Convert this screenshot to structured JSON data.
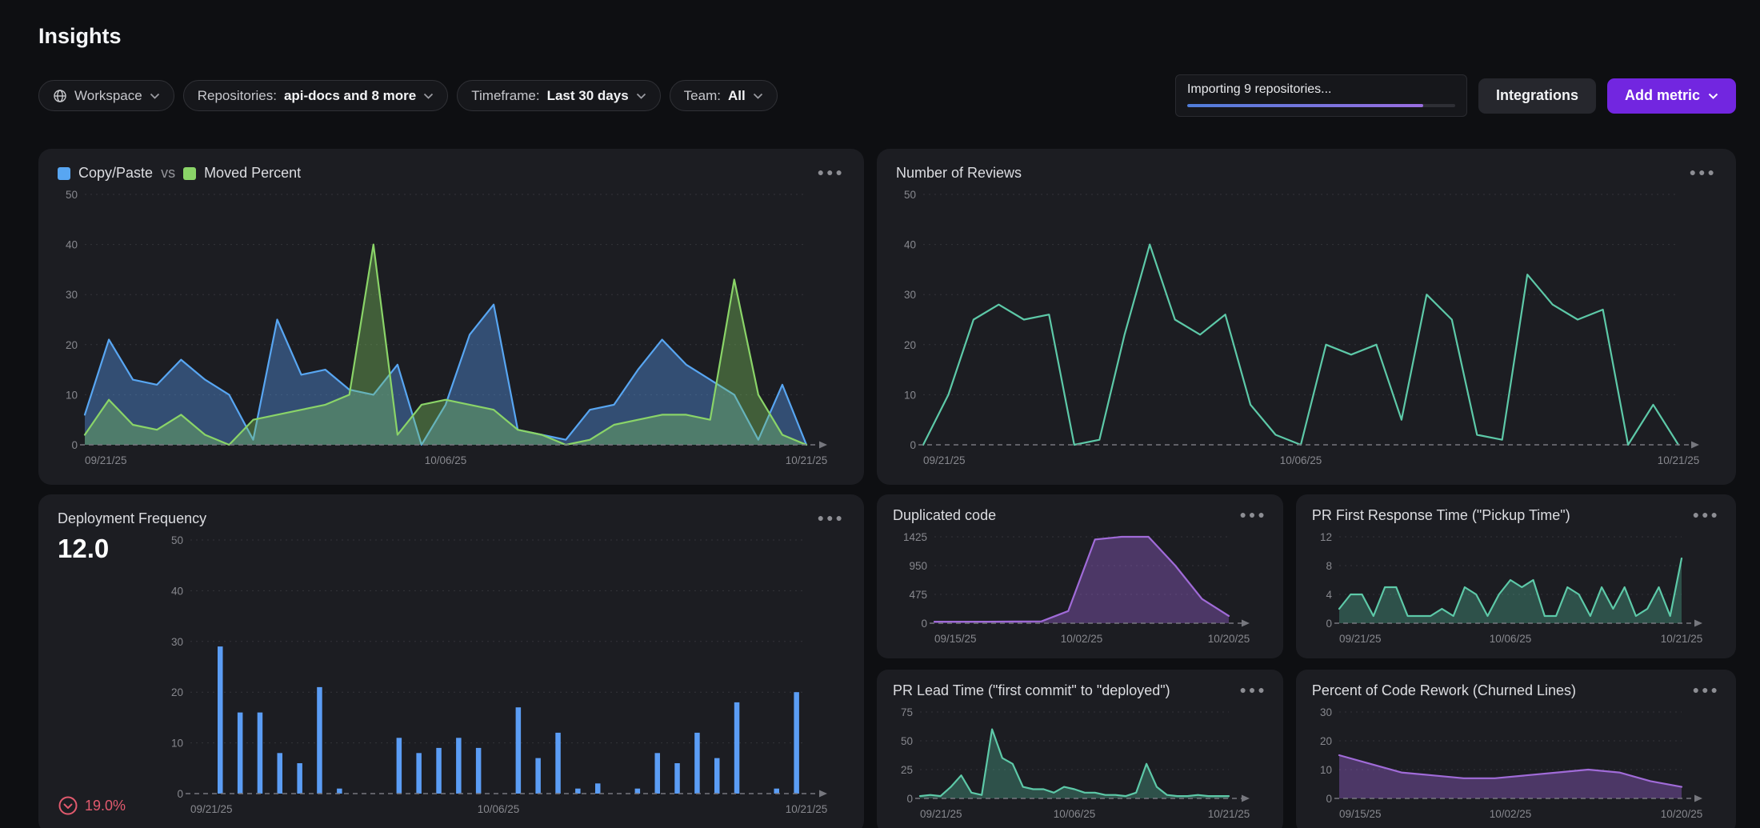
{
  "page": {
    "title": "Insights"
  },
  "toolbar": {
    "workspace": {
      "label": "Workspace"
    },
    "repositories": {
      "prefix": "Repositories:",
      "value": "api-docs and 8 more"
    },
    "timeframe": {
      "prefix": "Timeframe:",
      "value": "Last 30 days"
    },
    "team": {
      "prefix": "Team:",
      "value": "All"
    },
    "import": {
      "text": "Importing 9 repositories...",
      "progress_percent": 88
    },
    "integrations_label": "Integrations",
    "add_metric_label": "Add metric"
  },
  "colors": {
    "accent_purple": "#7226e0",
    "blue_series": "#58a6f2",
    "green_series": "#8ad468",
    "teal_series": "#5dc9a8",
    "purple_series": "#a06bd8",
    "bar_blue": "#5b9df5",
    "delta_red": "#e25a6e"
  },
  "chart_data": [
    {
      "id": "copy-paste-vs-moved",
      "type": "area",
      "legend": [
        {
          "label": "Copy/Paste",
          "color": "#58a6f2"
        },
        {
          "label": "Moved Percent",
          "color": "#8ad468"
        }
      ],
      "legend_separator": "vs",
      "ylim": [
        0,
        50
      ],
      "yticks": [
        0,
        10,
        20,
        30,
        40,
        50
      ],
      "x_labels": [
        {
          "text": "09/21/25",
          "f": 0
        },
        {
          "text": "10/06/25",
          "f": 0.5
        },
        {
          "text": "10/21/25",
          "f": 1
        }
      ],
      "series": [
        {
          "name": "Copy/Paste",
          "color": "#58a6f2",
          "fill": "rgba(80,140,215,0.45)",
          "values": [
            6,
            21,
            13,
            12,
            17,
            13,
            10,
            1,
            25,
            14,
            15,
            11,
            10,
            16,
            0,
            8,
            22,
            28,
            3,
            2,
            1,
            7,
            8,
            15,
            21,
            16,
            13,
            10,
            1,
            12,
            0
          ]
        },
        {
          "name": "Moved Percent",
          "color": "#8ad468",
          "fill": "rgba(125,200,95,0.38)",
          "values": [
            2,
            9,
            4,
            3,
            6,
            2,
            0,
            5,
            6,
            7,
            8,
            10,
            40,
            2,
            8,
            9,
            8,
            7,
            3,
            2,
            0,
            1,
            4,
            5,
            6,
            6,
            5,
            33,
            10,
            2,
            0
          ]
        }
      ]
    },
    {
      "id": "number-of-reviews",
      "title": "Number of Reviews",
      "type": "line",
      "ylim": [
        0,
        50
      ],
      "yticks": [
        0,
        10,
        20,
        30,
        40,
        50
      ],
      "x_labels": [
        {
          "text": "09/21/25",
          "f": 0
        },
        {
          "text": "10/06/25",
          "f": 0.5
        },
        {
          "text": "10/21/25",
          "f": 1
        }
      ],
      "series": [
        {
          "name": "Reviews",
          "color": "#5dc9a8",
          "fill": null,
          "values": [
            0,
            10,
            25,
            28,
            25,
            26,
            0,
            1,
            22,
            40,
            25,
            22,
            26,
            8,
            2,
            0,
            20,
            18,
            20,
            5,
            30,
            25,
            2,
            1,
            34,
            28,
            25,
            27,
            0,
            8,
            0
          ]
        }
      ]
    },
    {
      "id": "deployment-frequency",
      "title": "Deployment Frequency",
      "type": "bar",
      "current_value": "12.0",
      "delta": {
        "value": "19.0%",
        "direction": "down"
      },
      "ylim": [
        0,
        50
      ],
      "yticks": [
        0,
        10,
        20,
        30,
        40,
        50
      ],
      "x_labels": [
        {
          "text": "09/21/25",
          "f": 0
        },
        {
          "text": "10/06/25",
          "f": 0.5
        },
        {
          "text": "10/21/25",
          "f": 1
        }
      ],
      "series": [
        {
          "name": "Deployments",
          "color": "#5b9df5",
          "values": [
            0,
            29,
            16,
            16,
            8,
            6,
            21,
            1,
            0,
            0,
            11,
            8,
            9,
            11,
            9,
            0,
            17,
            7,
            12,
            1,
            2,
            0,
            1,
            8,
            6,
            12,
            7,
            18,
            0,
            1,
            20
          ]
        }
      ]
    },
    {
      "id": "duplicated-code",
      "title": "Duplicated code",
      "type": "area",
      "ylim": [
        0,
        1425
      ],
      "yticks": [
        0,
        475,
        950,
        1425
      ],
      "x_labels": [
        {
          "text": "09/15/25",
          "f": 0
        },
        {
          "text": "10/02/25",
          "f": 0.5
        },
        {
          "text": "10/20/25",
          "f": 1
        }
      ],
      "series": [
        {
          "name": "Duplicated lines",
          "color": "#a06bd8",
          "fill": "rgba(150,95,205,0.4)",
          "values": [
            25,
            25,
            25,
            28,
            30,
            200,
            1380,
            1425,
            1425,
            950,
            400,
            120
          ]
        }
      ]
    },
    {
      "id": "pr-first-response-time",
      "title": "PR First Response Time (\"Pickup Time\")",
      "type": "area",
      "ylim": [
        0,
        12
      ],
      "yticks": [
        0,
        4,
        8,
        12
      ],
      "x_labels": [
        {
          "text": "09/21/25",
          "f": 0
        },
        {
          "text": "10/06/25",
          "f": 0.5
        },
        {
          "text": "10/21/25",
          "f": 1
        }
      ],
      "series": [
        {
          "name": "Pickup time",
          "color": "#5dc9a8",
          "fill": "rgba(80,180,150,0.35)",
          "values": [
            2,
            4,
            4,
            1,
            5,
            5,
            1,
            1,
            1,
            2,
            1,
            5,
            4,
            1,
            4,
            6,
            5,
            6,
            1,
            1,
            5,
            4,
            1,
            5,
            2,
            5,
            1,
            2,
            5,
            1,
            9
          ]
        }
      ]
    },
    {
      "id": "pr-lead-time",
      "title": "PR Lead Time (\"first commit\" to \"deployed\")",
      "type": "area",
      "ylim": [
        0,
        75
      ],
      "yticks": [
        0,
        25,
        50,
        75
      ],
      "x_labels": [
        {
          "text": "09/21/25",
          "f": 0
        },
        {
          "text": "10/06/25",
          "f": 0.5
        },
        {
          "text": "10/21/25",
          "f": 1
        }
      ],
      "series": [
        {
          "name": "Lead time",
          "color": "#5dc9a8",
          "fill": "rgba(80,180,150,0.35)",
          "values": [
            2,
            3,
            2,
            10,
            20,
            5,
            3,
            60,
            35,
            30,
            10,
            8,
            8,
            5,
            10,
            8,
            5,
            5,
            3,
            3,
            2,
            5,
            30,
            10,
            3,
            2,
            2,
            3,
            2,
            2,
            2
          ]
        }
      ]
    },
    {
      "id": "code-rework",
      "title": "Percent of Code Rework (Churned Lines)",
      "type": "area",
      "ylim": [
        0,
        30
      ],
      "yticks": [
        0,
        10,
        20,
        30
      ],
      "x_labels": [
        {
          "text": "09/15/25",
          "f": 0
        },
        {
          "text": "10/02/25",
          "f": 0.5
        },
        {
          "text": "10/20/25",
          "f": 1
        }
      ],
      "series": [
        {
          "name": "Rework percent",
          "color": "#a06bd8",
          "fill": "rgba(150,95,205,0.4)",
          "values": [
            15,
            12,
            9,
            8,
            7,
            7,
            8,
            9,
            10,
            9,
            6,
            4
          ]
        }
      ]
    }
  ]
}
